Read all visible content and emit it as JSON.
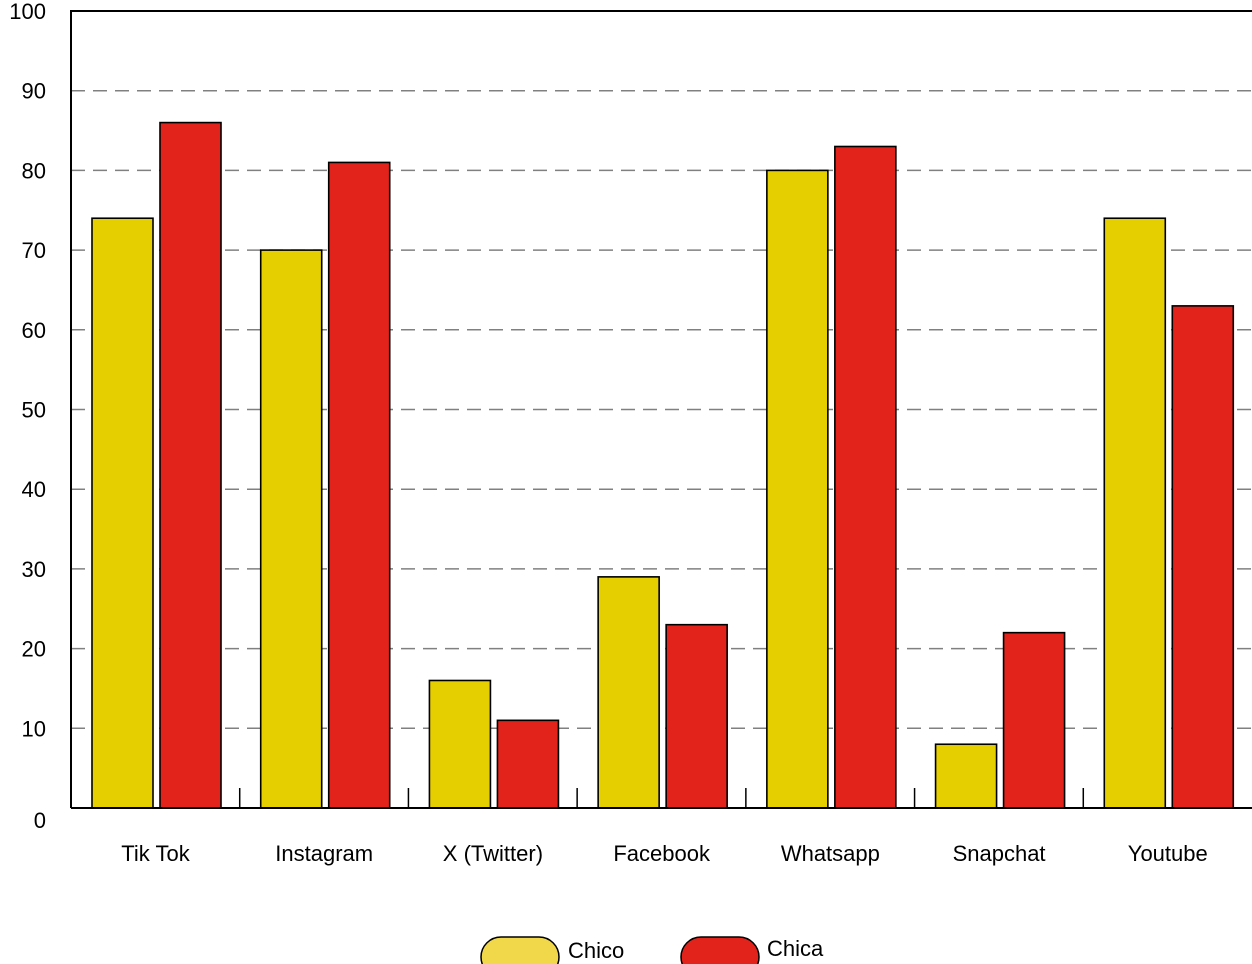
{
  "chart_data": {
    "type": "bar",
    "categories": [
      "Tik Tok",
      "Instagram",
      "X (Twitter)",
      "Facebook",
      "Whatsapp",
      "Snapchat",
      "Youtube"
    ],
    "series": [
      {
        "name": "Chico",
        "color": "#e6cf00",
        "values": [
          74,
          70,
          16,
          29,
          80,
          8,
          74
        ]
      },
      {
        "name": "Chica",
        "color": "#e2231b",
        "values": [
          86,
          81,
          11,
          23,
          83,
          22,
          63
        ]
      }
    ],
    "yticks": [
      "0",
      "10",
      "20",
      "30",
      "40",
      "50",
      "60",
      "70",
      "80",
      "90",
      "100"
    ],
    "ylim": [
      0,
      100
    ],
    "grid": "horizontal dashed",
    "legend_position": "bottom-center",
    "legend_color_chico": "#f0d84a",
    "title": "",
    "xlabel": "",
    "ylabel": ""
  }
}
